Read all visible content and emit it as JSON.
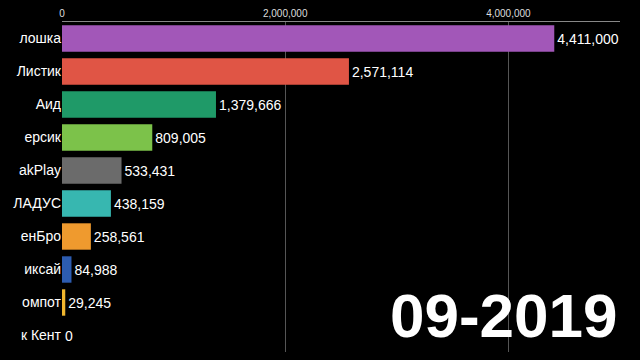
{
  "chart_data": {
    "type": "bar",
    "orientation": "horizontal",
    "categories": [
      "лошка",
      "Листик",
      "Аид",
      "ерсик",
      "akPlay",
      "ЛАДУС",
      "енБро",
      "иксай",
      "омпот",
      "к Кент"
    ],
    "values": [
      4411000,
      2571114,
      1379666,
      809005,
      533431,
      438159,
      258561,
      84988,
      29245,
      0
    ],
    "value_labels": [
      "4,411,000",
      "2,571,114",
      "1,379,666",
      "809,005",
      "533,431",
      "438,159",
      "258,561",
      "84,988",
      "29,245",
      "0"
    ],
    "colors": [
      "#a257b8",
      "#e05545",
      "#1f9a68",
      "#7cc24a",
      "#6b6b6b",
      "#37b7b0",
      "#ef9a2e",
      "#2d5cb0",
      "#f0b62e",
      "#ffffff"
    ],
    "data_labels": true,
    "xlim": [
      0,
      5000000
    ],
    "xticks": [
      0,
      {
        "value": 2000000,
        "label": "2,000,000"
      },
      {
        "value": 4000000,
        "label": "4,000,000"
      }
    ],
    "grid": true,
    "annotations": [
      "09-2019"
    ]
  }
}
